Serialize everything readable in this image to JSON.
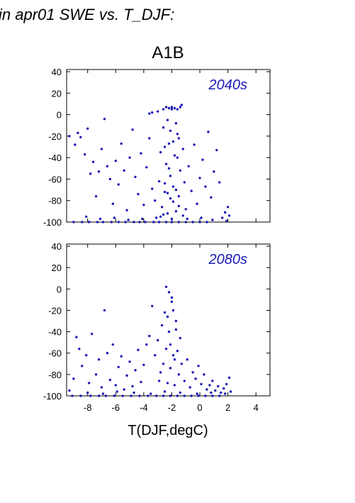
{
  "figure": {
    "suptitle": "in apr01 SWE vs. T_DJF:",
    "scenario_title": "A1B",
    "xlabel": "T(DJF,degC)"
  },
  "colors": {
    "points": "#1a1ab8",
    "panel_label": "#1a1ab8",
    "axes": "#000000"
  },
  "chart_data": [
    {
      "type": "scatter",
      "panel_label": "2040s",
      "xlim": [
        -9.5,
        5
      ],
      "ylim": [
        -100,
        42
      ],
      "xticks": [
        -8,
        -6,
        -4,
        -2,
        0,
        2,
        4
      ],
      "yticks": [
        40,
        20,
        0,
        -20,
        -40,
        -60,
        -80,
        -100
      ],
      "grid": false,
      "points": [
        [
          -9.3,
          -20
        ],
        [
          -8.9,
          -28
        ],
        [
          -8.7,
          -17
        ],
        [
          -8.5,
          -21
        ],
        [
          -8.2,
          -37
        ],
        [
          -8.0,
          -13
        ],
        [
          -7.8,
          -55
        ],
        [
          -7.6,
          -44
        ],
        [
          -7.4,
          -76
        ],
        [
          -7.2,
          -53
        ],
        [
          -7.0,
          -32
        ],
        [
          -6.8,
          -4
        ],
        [
          -6.6,
          -48
        ],
        [
          -6.4,
          -60
        ],
        [
          -6.2,
          -83
        ],
        [
          -6.0,
          -43
        ],
        [
          -5.8,
          -65
        ],
        [
          -5.6,
          -27
        ],
        [
          -5.4,
          -52
        ],
        [
          -5.2,
          -89
        ],
        [
          -5.0,
          -40
        ],
        [
          -4.8,
          -14
        ],
        [
          -4.6,
          -58
        ],
        [
          -4.4,
          -74
        ],
        [
          -4.2,
          -36
        ],
        [
          -4.0,
          -84
        ],
        [
          -3.8,
          -49
        ],
        [
          -3.6,
          -22
        ],
        [
          -3.4,
          -69
        ],
        [
          -3.2,
          -80
        ],
        [
          -3.0,
          3
        ],
        [
          -2.9,
          -62
        ],
        [
          -2.8,
          -35
        ],
        [
          -2.7,
          -86
        ],
        [
          -2.6,
          -12
        ],
        [
          -2.5,
          -72
        ],
        [
          -2.4,
          -46
        ],
        [
          -2.3,
          -92
        ],
        [
          -2.2,
          -27
        ],
        [
          -2.1,
          -57
        ],
        [
          -2.0,
          5
        ],
        [
          -1.9,
          -67
        ],
        [
          -1.8,
          -38
        ],
        [
          -1.7,
          -90
        ],
        [
          -1.6,
          -18
        ],
        [
          -1.5,
          -76
        ],
        [
          -1.4,
          -52
        ],
        [
          -1.3,
          9
        ],
        [
          -1.2,
          -32
        ],
        [
          -1.1,
          -63
        ],
        [
          -1.0,
          -88
        ],
        [
          -0.8,
          -48
        ],
        [
          -0.6,
          -71
        ],
        [
          -0.4,
          -28
        ],
        [
          -0.2,
          -83
        ],
        [
          0.0,
          -59
        ],
        [
          0.2,
          -42
        ],
        [
          0.4,
          -67
        ],
        [
          0.6,
          -16
        ],
        [
          0.8,
          -77
        ],
        [
          1.0,
          -53
        ],
        [
          1.2,
          -33
        ],
        [
          1.4,
          -63
        ],
        [
          1.6,
          -96
        ],
        [
          1.8,
          -91
        ],
        [
          2.0,
          -86
        ],
        [
          2.1,
          -94
        ],
        [
          -2.6,
          5
        ],
        [
          -2.4,
          7
        ],
        [
          -2.2,
          6
        ],
        [
          -2.0,
          7
        ],
        [
          -1.8,
          6
        ],
        [
          -1.6,
          5
        ],
        [
          -1.4,
          7
        ],
        [
          -3.4,
          2
        ],
        [
          -3.6,
          1
        ],
        [
          -2.3,
          -5
        ],
        [
          -2.1,
          -15
        ],
        [
          -1.9,
          -25
        ],
        [
          -1.7,
          -8
        ],
        [
          -1.5,
          -22
        ],
        [
          -2.5,
          -30
        ],
        [
          -1.6,
          -40
        ],
        [
          -2.2,
          -50
        ],
        [
          -2.5,
          -64
        ],
        [
          -2.3,
          -73
        ],
        [
          -2.1,
          -78
        ],
        [
          -1.9,
          -81
        ],
        [
          -1.7,
          -70
        ],
        [
          -1.5,
          -85
        ],
        [
          -2.8,
          -95
        ],
        [
          -2.6,
          -93
        ],
        [
          -2.0,
          -97
        ],
        [
          -1.2,
          -94
        ],
        [
          -9.0,
          -100
        ],
        [
          -8.4,
          -100
        ],
        [
          -7.9,
          -100
        ],
        [
          -7.3,
          -100
        ],
        [
          -6.9,
          -100
        ],
        [
          -6.3,
          -100
        ],
        [
          -5.8,
          -100
        ],
        [
          -5.3,
          -100
        ],
        [
          -4.7,
          -100
        ],
        [
          -4.3,
          -100
        ],
        [
          -3.9,
          -100
        ],
        [
          -3.3,
          -100
        ],
        [
          -2.9,
          -100
        ],
        [
          -2.4,
          -100
        ],
        [
          -2.0,
          -100
        ],
        [
          -1.5,
          -100
        ],
        [
          -1.0,
          -100
        ],
        [
          -0.5,
          -100
        ],
        [
          0.0,
          -100
        ],
        [
          0.5,
          -100
        ],
        [
          -8.1,
          -95
        ],
        [
          -7.1,
          -97
        ],
        [
          -6.1,
          -96
        ],
        [
          -5.1,
          -98
        ],
        [
          -4.1,
          -97
        ],
        [
          -3.1,
          -96
        ],
        [
          -0.9,
          -97
        ],
        [
          0.1,
          -96
        ],
        [
          0.9,
          -98
        ],
        [
          1.9,
          -99
        ]
      ]
    },
    {
      "type": "scatter",
      "panel_label": "2080s",
      "xlim": [
        -9.5,
        5
      ],
      "ylim": [
        -100,
        42
      ],
      "xticks": [
        -8,
        -6,
        -4,
        -2,
        0,
        2,
        4
      ],
      "yticks": [
        40,
        20,
        0,
        -20,
        -40,
        -60,
        -80,
        -100
      ],
      "grid": false,
      "points": [
        [
          -9.3,
          -95
        ],
        [
          -9.0,
          -84
        ],
        [
          -8.8,
          -45
        ],
        [
          -8.6,
          -56
        ],
        [
          -8.4,
          -72
        ],
        [
          -8.1,
          -62
        ],
        [
          -7.9,
          -88
        ],
        [
          -7.7,
          -42
        ],
        [
          -7.4,
          -80
        ],
        [
          -7.2,
          -66
        ],
        [
          -7.0,
          -92
        ],
        [
          -6.8,
          -20
        ],
        [
          -6.6,
          -60
        ],
        [
          -6.4,
          -85
        ],
        [
          -6.2,
          -52
        ],
        [
          -6.0,
          -90
        ],
        [
          -5.8,
          -73
        ],
        [
          -5.6,
          -63
        ],
        [
          -5.4,
          -94
        ],
        [
          -5.2,
          -81
        ],
        [
          -5.0,
          -68
        ],
        [
          -4.8,
          -91
        ],
        [
          -4.6,
          -76
        ],
        [
          -4.4,
          -57
        ],
        [
          -4.2,
          -87
        ],
        [
          -4.0,
          -71
        ],
        [
          -3.8,
          -52
        ],
        [
          -3.6,
          -44
        ],
        [
          -3.4,
          -16
        ],
        [
          -3.2,
          -62
        ],
        [
          -3.0,
          -48
        ],
        [
          -2.9,
          -86
        ],
        [
          -2.8,
          -78
        ],
        [
          -2.7,
          -34
        ],
        [
          -2.6,
          -70
        ],
        [
          -2.5,
          -22
        ],
        [
          -2.4,
          -56
        ],
        [
          -2.3,
          -88
        ],
        [
          -2.2,
          -40
        ],
        [
          -2.1,
          -74
        ],
        [
          -2.0,
          -12
        ],
        [
          -1.9,
          -62
        ],
        [
          -1.8,
          -90
        ],
        [
          -1.7,
          -30
        ],
        [
          -1.6,
          -58
        ],
        [
          -1.5,
          -80
        ],
        [
          -1.4,
          -46
        ],
        [
          -1.3,
          -70
        ],
        [
          -1.1,
          -86
        ],
        [
          -0.9,
          -66
        ],
        [
          -0.7,
          -92
        ],
        [
          -0.5,
          -78
        ],
        [
          -0.3,
          -84
        ],
        [
          -0.1,
          -72
        ],
        [
          0.1,
          -89
        ],
        [
          0.3,
          -80
        ],
        [
          0.5,
          -94
        ],
        [
          0.7,
          -90
        ],
        [
          0.9,
          -86
        ],
        [
          1.1,
          -95
        ],
        [
          1.3,
          -91
        ],
        [
          1.5,
          -97
        ],
        [
          1.7,
          -93
        ],
        [
          1.9,
          -89
        ],
        [
          2.1,
          -83
        ],
        [
          2.2,
          -96
        ],
        [
          -2.4,
          2
        ],
        [
          -2.2,
          -3
        ],
        [
          -2.0,
          -8
        ],
        [
          -1.9,
          -20
        ],
        [
          -2.3,
          -26
        ],
        [
          -1.7,
          -38
        ],
        [
          -2.1,
          -52
        ],
        [
          -1.8,
          -66
        ],
        [
          -9.1,
          -100
        ],
        [
          -8.5,
          -100
        ],
        [
          -7.8,
          -100
        ],
        [
          -7.2,
          -100
        ],
        [
          -6.7,
          -100
        ],
        [
          -6.1,
          -100
        ],
        [
          -5.5,
          -100
        ],
        [
          -4.9,
          -100
        ],
        [
          -4.3,
          -100
        ],
        [
          -3.7,
          -100
        ],
        [
          -3.1,
          -100
        ],
        [
          -2.6,
          -100
        ],
        [
          -2.1,
          -100
        ],
        [
          -1.6,
          -100
        ],
        [
          -1.1,
          -100
        ],
        [
          -0.6,
          -100
        ],
        [
          -0.1,
          -100
        ],
        [
          0.4,
          -100
        ],
        [
          0.9,
          -100
        ],
        [
          1.4,
          -100
        ],
        [
          -8.0,
          -97
        ],
        [
          -6.9,
          -98
        ],
        [
          -5.9,
          -96
        ],
        [
          -4.7,
          -97
        ],
        [
          -3.5,
          -98
        ],
        [
          -2.5,
          -96
        ],
        [
          -1.4,
          -97
        ],
        [
          -0.2,
          -98
        ],
        [
          0.8,
          -97
        ],
        [
          1.8,
          -98
        ]
      ]
    }
  ]
}
